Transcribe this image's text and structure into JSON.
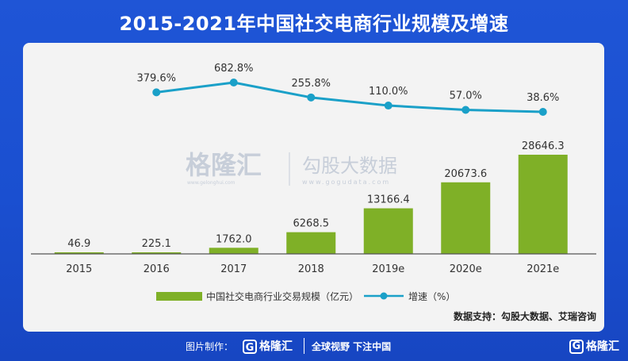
{
  "header": {
    "title": "2015-2021年中国社交电商行业规模及增速"
  },
  "watermark": {
    "left_brand": "格隆汇",
    "left_url": "www.gelonghui.com",
    "right_brand": "勾股大数据",
    "right_url": "www.gogudata.com"
  },
  "source": "数据支持：勾股大数据、艾瑞咨询",
  "footer": {
    "made_by": "图片制作：",
    "brand": "格隆汇",
    "brand_url": "www.gelonghui.com",
    "slogan": "全球视野  下注中国",
    "corner_brand": "格隆汇"
  },
  "colors": {
    "bar": "#7fb027",
    "line": "#1aa0c8",
    "title_bg": "#1f55d6"
  },
  "chart_data": {
    "type": "bar",
    "title": "2015-2021年中国社交电商行业规模及增速",
    "categories": [
      "2015",
      "2016",
      "2017",
      "2018",
      "2019e",
      "2020e",
      "2021e"
    ],
    "series": [
      {
        "name": "中国社交电商行业交易规模（亿元）",
        "type": "bar",
        "values": [
          46.9,
          225.1,
          1762.0,
          6268.5,
          13166.4,
          20673.6,
          28646.3
        ],
        "labels": [
          "46.9",
          "225.1",
          "1762.0",
          "6268.5",
          "13166.4",
          "20673.6",
          "28646.3"
        ]
      },
      {
        "name": "增速（%）",
        "type": "line",
        "values": [
          null,
          379.6,
          682.8,
          255.8,
          110.0,
          57.0,
          38.6
        ],
        "labels": [
          null,
          "379.6%",
          "682.8%",
          "255.8%",
          "110.0%",
          "57.0%",
          "38.6%"
        ]
      }
    ],
    "grid": false,
    "legend": "bottom"
  }
}
